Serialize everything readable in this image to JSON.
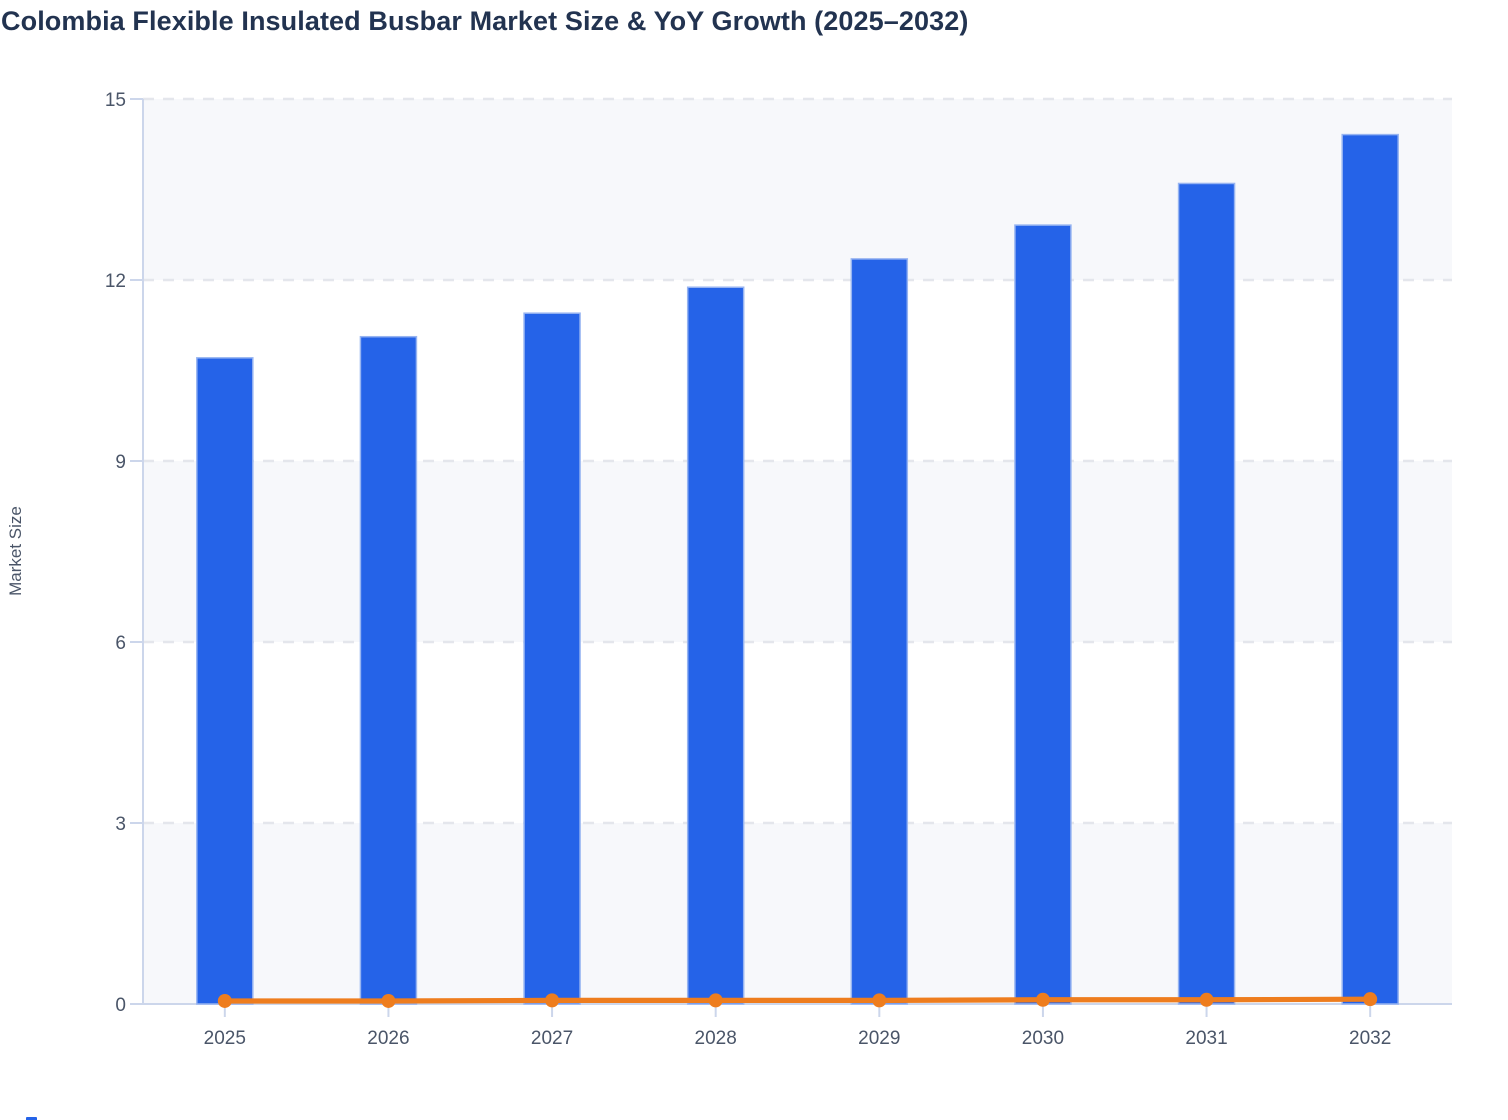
{
  "title": "Colombia Flexible Insulated Busbar Market Size & YoY Growth (2025–2032)",
  "chart_data": {
    "type": "bar",
    "subtype": "combo-bar-line",
    "title": "Colombia Flexible Insulated Busbar Market Size & YoY Growth (2025–2032)",
    "categories": [
      "2025",
      "2026",
      "2027",
      "2028",
      "2029",
      "2030",
      "2031",
      "2032"
    ],
    "series": [
      {
        "name": "Market Size",
        "type": "bar",
        "values": [
          10.71,
          11.06,
          11.45,
          11.88,
          12.35,
          12.91,
          13.6,
          14.41
        ]
      },
      {
        "name": "YoY Growth",
        "type": "line",
        "values": [
          0.05,
          0.05,
          0.06,
          0.06,
          0.06,
          0.07,
          0.07,
          0.08
        ]
      }
    ],
    "xlabel": "",
    "ylabel": "Market Size",
    "ylim": [
      0,
      15
    ],
    "yticks": [
      0,
      3,
      6,
      9,
      12,
      15
    ],
    "grid": "horizontal-dashed",
    "band_shading": "alternating horizontal bands between ticks",
    "legend_position": "bottom-clipped",
    "colors": {
      "bar_fill": "#2563e8",
      "bar_stroke": "#97b4f1",
      "line": "#ee7d1e",
      "marker": "#ee7d1e",
      "band_light": "#f7f8fb",
      "band_white": "#ffffff",
      "gridline": "#e4e6ec",
      "axis_line": "#ccd6eb",
      "tick_label": "#4a5568",
      "title_color": "#223350",
      "background": "#ffffff"
    }
  }
}
